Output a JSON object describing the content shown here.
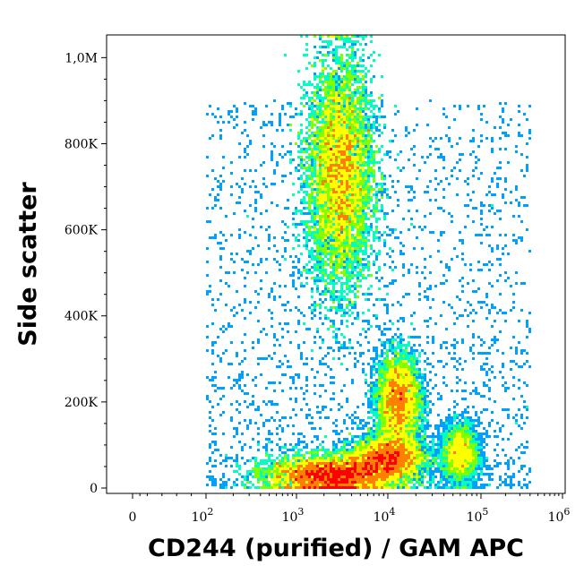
{
  "chart_data": {
    "type": "scatter",
    "xlabel": "CD244 (purified) / GAM APC",
    "ylabel": "Side scatter",
    "x_scale": "biexponential",
    "y_scale": "linear",
    "xlim": [
      -100,
      1000000
    ],
    "ylim": [
      0,
      1048576
    ],
    "x_ticks": [
      {
        "value": 0,
        "label": "0"
      },
      {
        "value": 100,
        "label": "10",
        "exp": "2"
      },
      {
        "value": 1000,
        "label": "10",
        "exp": "3"
      },
      {
        "value": 10000,
        "label": "10",
        "exp": "4"
      },
      {
        "value": 100000,
        "label": "10",
        "exp": "5"
      },
      {
        "value": 1000000,
        "label": "10",
        "exp": "6"
      }
    ],
    "y_ticks": [
      {
        "value": 0,
        "label": "0"
      },
      {
        "value": 200000,
        "label": "200K"
      },
      {
        "value": 400000,
        "label": "400K"
      },
      {
        "value": 600000,
        "label": "600K"
      },
      {
        "value": 800000,
        "label": "800K"
      },
      {
        "value": 1000000,
        "label": "1,0M"
      }
    ],
    "color_scale": [
      "#0000ff",
      "#00a0ff",
      "#00ffc0",
      "#80ff00",
      "#ffff00",
      "#ff8000",
      "#ff0000"
    ],
    "grid": false,
    "legend": "none",
    "populations": [
      {
        "x_center": 3000,
        "y_center": 730000,
        "x_spread_decades": 0.18,
        "y_spread": 130000,
        "weight": 0.35
      },
      {
        "x_center": 2500,
        "y_center": 30000,
        "x_spread_decades": 0.35,
        "y_spread": 22000,
        "weight": 0.3
      },
      {
        "x_center": 13000,
        "y_center": 200000,
        "x_spread_decades": 0.12,
        "y_spread": 55000,
        "weight": 0.15
      },
      {
        "x_center": 60000,
        "y_center": 80000,
        "x_spread_decades": 0.1,
        "y_spread": 35000,
        "weight": 0.05
      },
      {
        "x_center": 10000,
        "y_center": 70000,
        "x_spread_decades": 0.2,
        "y_spread": 25000,
        "weight": 0.15
      }
    ]
  }
}
